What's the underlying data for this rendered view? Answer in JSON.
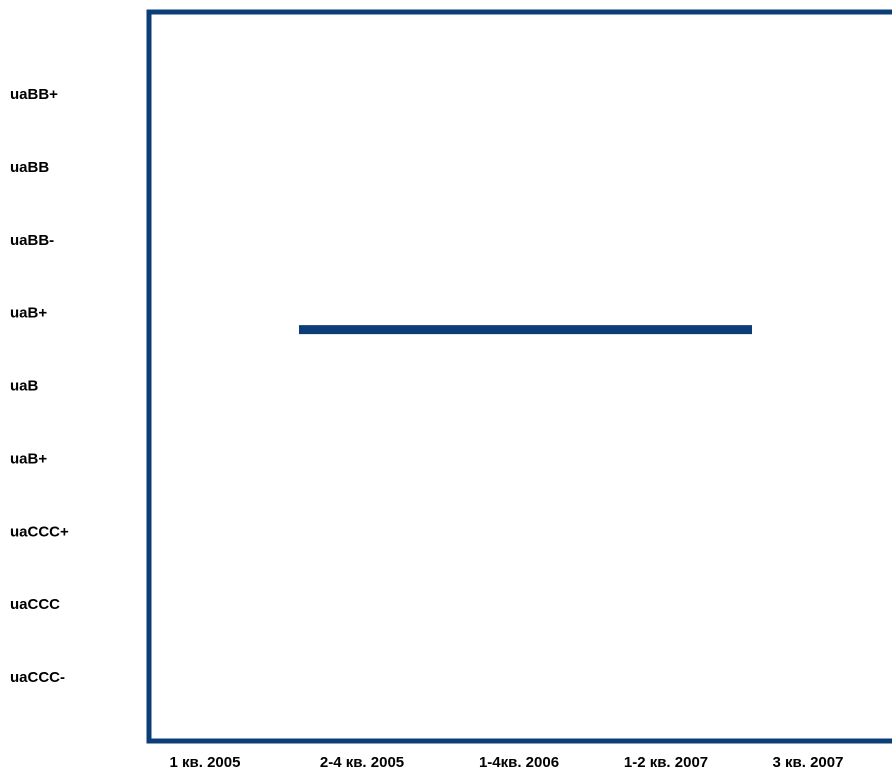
{
  "chart_data": {
    "type": "line",
    "title": "",
    "xlabel": "",
    "ylabel": "",
    "grid": false,
    "legend": "none",
    "categories": [
      "1 кв. 2005",
      "2-4 кв. 2005",
      "1-4кв. 2006",
      "1-2 кв. 2007",
      "3 кв. 2007"
    ],
    "y_categories": [
      "uaBB+",
      "uaBB",
      "uaBB-",
      "uaB+",
      "uaB",
      "uaB+",
      "uaCCC+",
      "uaCCC",
      "uaCCC-"
    ],
    "series": [
      {
        "values": [
          null,
          "uaB+",
          "uaB+",
          "uaB+",
          null
        ],
        "y_index": [
          null,
          3,
          3,
          3,
          null
        ]
      }
    ],
    "colors": {
      "axis": "#0b3d78",
      "series": "#0b3d78"
    }
  }
}
